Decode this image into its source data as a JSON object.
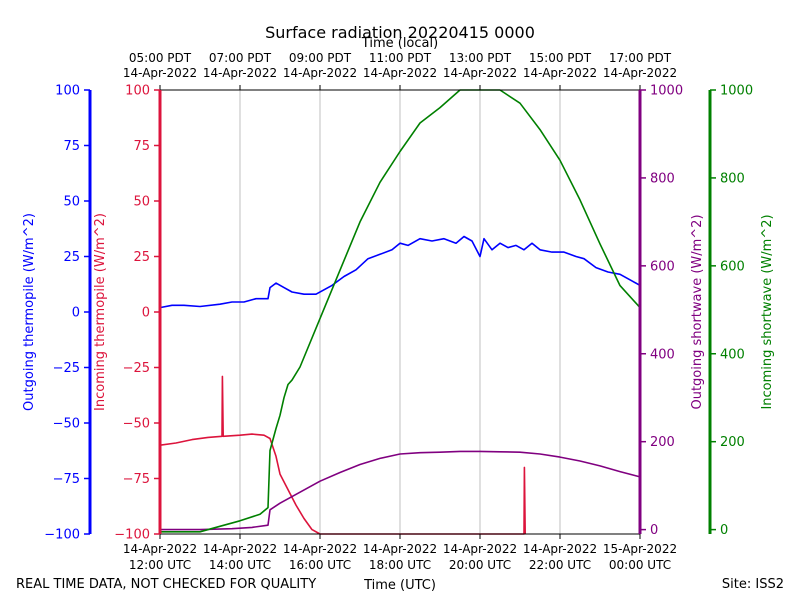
{
  "chart_data": {
    "type": "line",
    "title": "Surface radiation 20220415 0000",
    "top_axis_label": "Time (local)",
    "bottom_axis_label": "Time (UTC)",
    "footer_left": "REAL TIME DATA, NOT CHECKED FOR QUALITY",
    "footer_right": "Site: ISS2",
    "x_range_hours": [
      12,
      24
    ],
    "bottom_ticks": [
      {
        "hour": 12,
        "line1": "14-Apr-2022",
        "line2": "12:00 UTC"
      },
      {
        "hour": 14,
        "line1": "14-Apr-2022",
        "line2": "14:00 UTC"
      },
      {
        "hour": 16,
        "line1": "14-Apr-2022",
        "line2": "16:00 UTC"
      },
      {
        "hour": 18,
        "line1": "14-Apr-2022",
        "line2": "18:00 UTC"
      },
      {
        "hour": 20,
        "line1": "14-Apr-2022",
        "line2": "20:00 UTC"
      },
      {
        "hour": 22,
        "line1": "14-Apr-2022",
        "line2": "22:00 UTC"
      },
      {
        "hour": 24,
        "line1": "15-Apr-2022",
        "line2": "00:00 UTC"
      }
    ],
    "top_ticks": [
      {
        "hour": 12,
        "line1": "05:00 PDT",
        "line2": "14-Apr-2022"
      },
      {
        "hour": 14,
        "line1": "07:00 PDT",
        "line2": "14-Apr-2022"
      },
      {
        "hour": 16,
        "line1": "09:00 PDT",
        "line2": "14-Apr-2022"
      },
      {
        "hour": 18,
        "line1": "11:00 PDT",
        "line2": "14-Apr-2022"
      },
      {
        "hour": 20,
        "line1": "13:00 PDT",
        "line2": "14-Apr-2022"
      },
      {
        "hour": 22,
        "line1": "15:00 PDT",
        "line2": "14-Apr-2022"
      },
      {
        "hour": 24,
        "line1": "17:00 PDT",
        "line2": "14-Apr-2022"
      }
    ],
    "axes": {
      "outgoing_thermopile": {
        "label": "Outgoing thermopile (W/m^2)",
        "color": "#0000ff",
        "ylim": [
          -100,
          100
        ],
        "ticks": [
          -100,
          -75,
          -50,
          -25,
          0,
          25,
          50,
          75,
          100
        ]
      },
      "incoming_thermopile": {
        "label": "Incoming thermopile (W/m^2)",
        "color": "#dc143c",
        "ylim": [
          -100,
          100
        ],
        "ticks": [
          -100,
          -75,
          -50,
          -25,
          0,
          25,
          50,
          75,
          100
        ]
      },
      "outgoing_shortwave": {
        "label": "Outgoing shortwave (W/m^2)",
        "color": "#800080",
        "ylim": [
          -10,
          1000
        ],
        "ticks": [
          0,
          200,
          400,
          600,
          800,
          1000
        ]
      },
      "incoming_shortwave": {
        "label": "Incoming shortwave (W/m^2)",
        "color": "#008000",
        "ylim": [
          -10,
          1000
        ],
        "ticks": [
          0,
          200,
          400,
          600,
          800,
          1000
        ]
      }
    },
    "series": [
      {
        "name": "Outgoing thermopile",
        "axis": "outgoing_thermopile",
        "color": "#0000ff",
        "points": [
          [
            12.0,
            2
          ],
          [
            12.3,
            3
          ],
          [
            12.6,
            3
          ],
          [
            13.0,
            2.5
          ],
          [
            13.5,
            3.5
          ],
          [
            13.8,
            4.5
          ],
          [
            14.1,
            4.5
          ],
          [
            14.4,
            6
          ],
          [
            14.7,
            6
          ],
          [
            14.75,
            11
          ],
          [
            14.9,
            13
          ],
          [
            15.1,
            11
          ],
          [
            15.3,
            9
          ],
          [
            15.6,
            8
          ],
          [
            15.9,
            8
          ],
          [
            16.1,
            10
          ],
          [
            16.3,
            12
          ],
          [
            16.6,
            16
          ],
          [
            16.9,
            19
          ],
          [
            17.2,
            24
          ],
          [
            17.5,
            26
          ],
          [
            17.8,
            28
          ],
          [
            18.0,
            31
          ],
          [
            18.2,
            30
          ],
          [
            18.5,
            33
          ],
          [
            18.8,
            32
          ],
          [
            19.1,
            33
          ],
          [
            19.4,
            31
          ],
          [
            19.6,
            34
          ],
          [
            19.8,
            32
          ],
          [
            20.0,
            25
          ],
          [
            20.1,
            33
          ],
          [
            20.3,
            28
          ],
          [
            20.5,
            31
          ],
          [
            20.7,
            29
          ],
          [
            20.9,
            30
          ],
          [
            21.1,
            28
          ],
          [
            21.3,
            31
          ],
          [
            21.5,
            28
          ],
          [
            21.8,
            27
          ],
          [
            22.1,
            27
          ],
          [
            22.4,
            25
          ],
          [
            22.6,
            24
          ],
          [
            22.9,
            20
          ],
          [
            23.2,
            18
          ],
          [
            23.5,
            17
          ],
          [
            23.8,
            14
          ],
          [
            24.0,
            12
          ]
        ]
      },
      {
        "name": "Incoming thermopile",
        "axis": "incoming_thermopile",
        "color": "#dc143c",
        "points": [
          [
            12.0,
            -60
          ],
          [
            12.4,
            -59
          ],
          [
            12.8,
            -57.5
          ],
          [
            13.2,
            -56.5
          ],
          [
            13.55,
            -56
          ],
          [
            13.56,
            -29
          ],
          [
            13.58,
            -56
          ],
          [
            14.0,
            -55.5
          ],
          [
            14.3,
            -55
          ],
          [
            14.6,
            -55.5
          ],
          [
            14.75,
            -57
          ],
          [
            14.9,
            -65
          ],
          [
            15.0,
            -73
          ],
          [
            15.2,
            -80
          ],
          [
            15.4,
            -87
          ],
          [
            15.6,
            -93
          ],
          [
            15.8,
            -98
          ],
          [
            16.0,
            -100
          ],
          [
            16.1,
            -100
          ],
          [
            21.1,
            -100
          ],
          [
            21.11,
            -70
          ],
          [
            21.13,
            -100
          ]
        ]
      },
      {
        "name": "Outgoing shortwave",
        "axis": "outgoing_shortwave",
        "color": "#800080",
        "points": [
          [
            12.0,
            0
          ],
          [
            13.0,
            0
          ],
          [
            13.8,
            2
          ],
          [
            14.3,
            5
          ],
          [
            14.7,
            10
          ],
          [
            14.75,
            45
          ],
          [
            15.0,
            60
          ],
          [
            15.5,
            85
          ],
          [
            16.0,
            110
          ],
          [
            16.5,
            130
          ],
          [
            17.0,
            148
          ],
          [
            17.5,
            162
          ],
          [
            18.0,
            172
          ],
          [
            18.5,
            175
          ],
          [
            19.0,
            176
          ],
          [
            19.5,
            178
          ],
          [
            20.0,
            178
          ],
          [
            20.5,
            177
          ],
          [
            21.0,
            176
          ],
          [
            21.5,
            172
          ],
          [
            22.0,
            165
          ],
          [
            22.5,
            156
          ],
          [
            23.0,
            145
          ],
          [
            23.5,
            132
          ],
          [
            24.0,
            120
          ]
        ]
      },
      {
        "name": "Incoming shortwave",
        "axis": "incoming_shortwave",
        "color": "#008000",
        "points": [
          [
            12.0,
            -5
          ],
          [
            13.0,
            -5
          ],
          [
            13.6,
            10
          ],
          [
            14.0,
            20
          ],
          [
            14.5,
            35
          ],
          [
            14.7,
            50
          ],
          [
            14.75,
            180
          ],
          [
            14.9,
            230
          ],
          [
            15.0,
            260
          ],
          [
            15.1,
            300
          ],
          [
            15.2,
            330
          ],
          [
            15.3,
            340
          ],
          [
            15.5,
            370
          ],
          [
            16.0,
            480
          ],
          [
            16.5,
            590
          ],
          [
            17.0,
            700
          ],
          [
            17.5,
            790
          ],
          [
            18.0,
            860
          ],
          [
            18.5,
            925
          ],
          [
            19.0,
            960
          ],
          [
            19.5,
            1000
          ],
          [
            20.0,
            1005
          ],
          [
            20.5,
            1000
          ],
          [
            21.0,
            970
          ],
          [
            21.5,
            910
          ],
          [
            22.0,
            840
          ],
          [
            22.5,
            750
          ],
          [
            23.0,
            650
          ],
          [
            23.5,
            555
          ],
          [
            24.0,
            505
          ]
        ]
      }
    ]
  }
}
